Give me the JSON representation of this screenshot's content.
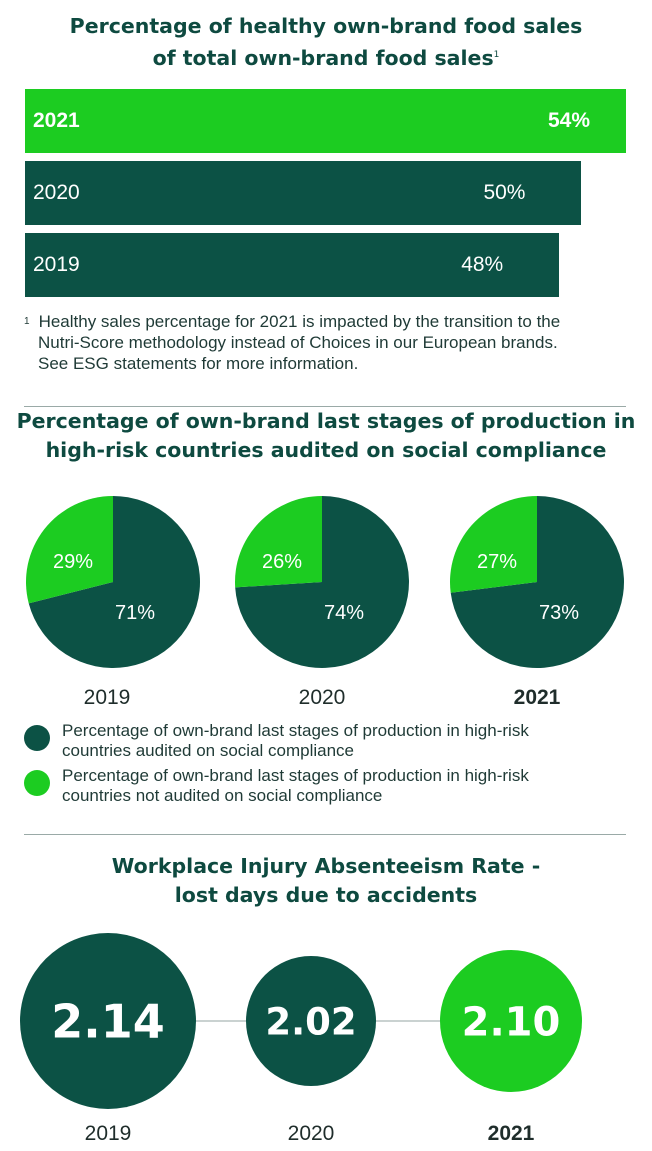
{
  "colors": {
    "dark": "#0c5245",
    "green": "#1ccc21",
    "text": "#1f3a36",
    "connector": "#b9c4c2"
  },
  "chart_data": [
    {
      "type": "bar",
      "title_lines": [
        "Percentage of healthy own-brand food sales",
        "of total own-brand food sales"
      ],
      "title_superscript": "1",
      "categories": [
        "2021",
        "2020",
        "2019"
      ],
      "values": [
        54,
        50,
        48
      ],
      "value_labels": [
        "54%",
        "50%",
        "48%"
      ],
      "highlight": "2021",
      "footnote_marker": "1",
      "footnote_lines": [
        "Healthy sales percentage for 2021 is impacted by the transition to the",
        "Nutri-Score methodology instead of Choices in our European brands.",
        "See ESG statements for more information."
      ]
    },
    {
      "type": "pie",
      "title_lines": [
        "Percentage of own-brand last stages of production in",
        "high-risk countries audited on social compliance"
      ],
      "pies": [
        {
          "year": "2019",
          "audited": 71,
          "not_audited": 29,
          "audited_label": "71%",
          "not_audited_label": "29%",
          "bold": false
        },
        {
          "year": "2020",
          "audited": 74,
          "not_audited": 26,
          "audited_label": "74%",
          "not_audited_label": "26%",
          "bold": false
        },
        {
          "year": "2021",
          "audited": 73,
          "not_audited": 27,
          "audited_label": "73%",
          "not_audited_label": "27%",
          "bold": true
        }
      ],
      "legend": [
        {
          "color": "#0c5245",
          "lines": [
            "Percentage of own-brand last stages of production in high-risk",
            "countries audited on social compliance"
          ]
        },
        {
          "color": "#1ccc21",
          "lines": [
            "Percentage of own-brand last stages of production in high-risk",
            "countries not audited on social compliance"
          ]
        }
      ]
    },
    {
      "type": "bubble",
      "title_lines": [
        "Workplace Injury Absenteeism Rate -",
        "lost days due to accidents"
      ],
      "points": [
        {
          "year": "2019",
          "value": 2.14,
          "label": "2.14",
          "bold": false
        },
        {
          "year": "2020",
          "value": 2.02,
          "label": "2.02",
          "bold": false
        },
        {
          "year": "2021",
          "value": 2.1,
          "label": "2.10",
          "bold": true
        }
      ]
    }
  ]
}
